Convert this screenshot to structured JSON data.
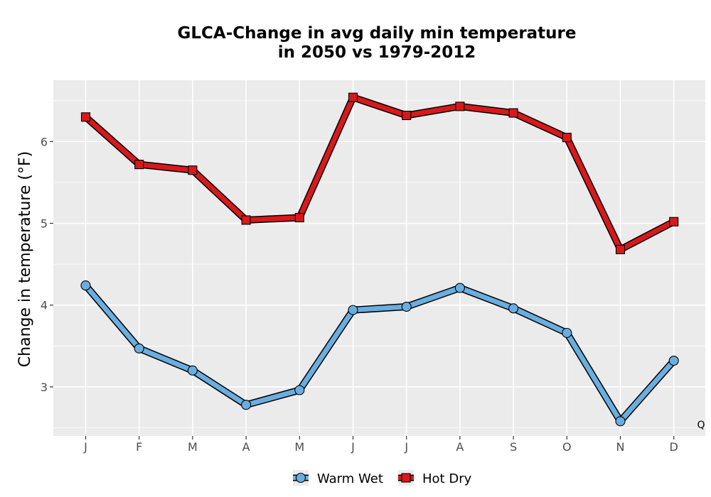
{
  "chart_data": {
    "type": "line",
    "title_lines": [
      "GLCA-Change in avg daily min temperature",
      "in 2050 vs 1979-2012"
    ],
    "ylabel": "Change in temperature (°F)",
    "xlabel": "",
    "categories": [
      "J",
      "F",
      "M",
      "A",
      "M",
      "J",
      "J",
      "A",
      "S",
      "O",
      "N",
      "D"
    ],
    "ylim": [
      2.4,
      6.75
    ],
    "yticks": [
      3,
      4,
      5,
      6
    ],
    "grid": true,
    "legend_position": "bottom",
    "annotation": "Q",
    "series": [
      {
        "name": "Warm Wet",
        "marker": "circle",
        "color": "#6aaee0",
        "values": [
          4.24,
          3.47,
          3.2,
          2.78,
          2.96,
          3.94,
          3.98,
          4.21,
          3.96,
          3.66,
          2.58,
          3.32
        ]
      },
      {
        "name": "Hot Dry",
        "marker": "square",
        "color": "#d7191c",
        "values": [
          6.3,
          5.72,
          5.65,
          5.04,
          5.07,
          6.54,
          6.32,
          6.43,
          6.35,
          6.05,
          4.68,
          5.02
        ]
      }
    ]
  }
}
